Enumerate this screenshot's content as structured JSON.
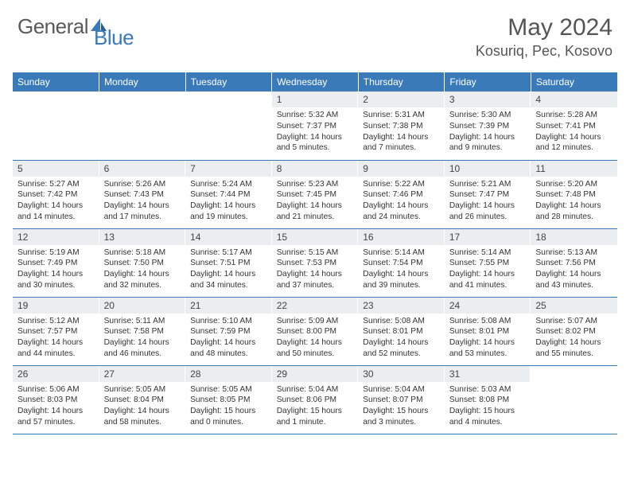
{
  "brand": {
    "part1": "General",
    "part2": "Blue",
    "text_color": "#5a5a5a",
    "accent_color": "#3a7ab8"
  },
  "title": "May 2024",
  "location": "Kosuriq, Pec, Kosovo",
  "colors": {
    "header_bg": "#3a7ab8",
    "header_text": "#ffffff",
    "daynum_bg": "#ecedef",
    "border": "#3a7ab8",
    "body_text": "#333333"
  },
  "day_headers": [
    "Sunday",
    "Monday",
    "Tuesday",
    "Wednesday",
    "Thursday",
    "Friday",
    "Saturday"
  ],
  "weeks": [
    [
      null,
      null,
      null,
      {
        "n": "1",
        "sr": "5:32 AM",
        "ss": "7:37 PM",
        "dl": "14 hours and 5 minutes."
      },
      {
        "n": "2",
        "sr": "5:31 AM",
        "ss": "7:38 PM",
        "dl": "14 hours and 7 minutes."
      },
      {
        "n": "3",
        "sr": "5:30 AM",
        "ss": "7:39 PM",
        "dl": "14 hours and 9 minutes."
      },
      {
        "n": "4",
        "sr": "5:28 AM",
        "ss": "7:41 PM",
        "dl": "14 hours and 12 minutes."
      }
    ],
    [
      {
        "n": "5",
        "sr": "5:27 AM",
        "ss": "7:42 PM",
        "dl": "14 hours and 14 minutes."
      },
      {
        "n": "6",
        "sr": "5:26 AM",
        "ss": "7:43 PM",
        "dl": "14 hours and 17 minutes."
      },
      {
        "n": "7",
        "sr": "5:24 AM",
        "ss": "7:44 PM",
        "dl": "14 hours and 19 minutes."
      },
      {
        "n": "8",
        "sr": "5:23 AM",
        "ss": "7:45 PM",
        "dl": "14 hours and 21 minutes."
      },
      {
        "n": "9",
        "sr": "5:22 AM",
        "ss": "7:46 PM",
        "dl": "14 hours and 24 minutes."
      },
      {
        "n": "10",
        "sr": "5:21 AM",
        "ss": "7:47 PM",
        "dl": "14 hours and 26 minutes."
      },
      {
        "n": "11",
        "sr": "5:20 AM",
        "ss": "7:48 PM",
        "dl": "14 hours and 28 minutes."
      }
    ],
    [
      {
        "n": "12",
        "sr": "5:19 AM",
        "ss": "7:49 PM",
        "dl": "14 hours and 30 minutes."
      },
      {
        "n": "13",
        "sr": "5:18 AM",
        "ss": "7:50 PM",
        "dl": "14 hours and 32 minutes."
      },
      {
        "n": "14",
        "sr": "5:17 AM",
        "ss": "7:51 PM",
        "dl": "14 hours and 34 minutes."
      },
      {
        "n": "15",
        "sr": "5:15 AM",
        "ss": "7:53 PM",
        "dl": "14 hours and 37 minutes."
      },
      {
        "n": "16",
        "sr": "5:14 AM",
        "ss": "7:54 PM",
        "dl": "14 hours and 39 minutes."
      },
      {
        "n": "17",
        "sr": "5:14 AM",
        "ss": "7:55 PM",
        "dl": "14 hours and 41 minutes."
      },
      {
        "n": "18",
        "sr": "5:13 AM",
        "ss": "7:56 PM",
        "dl": "14 hours and 43 minutes."
      }
    ],
    [
      {
        "n": "19",
        "sr": "5:12 AM",
        "ss": "7:57 PM",
        "dl": "14 hours and 44 minutes."
      },
      {
        "n": "20",
        "sr": "5:11 AM",
        "ss": "7:58 PM",
        "dl": "14 hours and 46 minutes."
      },
      {
        "n": "21",
        "sr": "5:10 AM",
        "ss": "7:59 PM",
        "dl": "14 hours and 48 minutes."
      },
      {
        "n": "22",
        "sr": "5:09 AM",
        "ss": "8:00 PM",
        "dl": "14 hours and 50 minutes."
      },
      {
        "n": "23",
        "sr": "5:08 AM",
        "ss": "8:01 PM",
        "dl": "14 hours and 52 minutes."
      },
      {
        "n": "24",
        "sr": "5:08 AM",
        "ss": "8:01 PM",
        "dl": "14 hours and 53 minutes."
      },
      {
        "n": "25",
        "sr": "5:07 AM",
        "ss": "8:02 PM",
        "dl": "14 hours and 55 minutes."
      }
    ],
    [
      {
        "n": "26",
        "sr": "5:06 AM",
        "ss": "8:03 PM",
        "dl": "14 hours and 57 minutes."
      },
      {
        "n": "27",
        "sr": "5:05 AM",
        "ss": "8:04 PM",
        "dl": "14 hours and 58 minutes."
      },
      {
        "n": "28",
        "sr": "5:05 AM",
        "ss": "8:05 PM",
        "dl": "15 hours and 0 minutes."
      },
      {
        "n": "29",
        "sr": "5:04 AM",
        "ss": "8:06 PM",
        "dl": "15 hours and 1 minute."
      },
      {
        "n": "30",
        "sr": "5:04 AM",
        "ss": "8:07 PM",
        "dl": "15 hours and 3 minutes."
      },
      {
        "n": "31",
        "sr": "5:03 AM",
        "ss": "8:08 PM",
        "dl": "15 hours and 4 minutes."
      },
      null
    ]
  ],
  "labels": {
    "sunrise": "Sunrise:",
    "sunset": "Sunset:",
    "daylight": "Daylight:"
  }
}
